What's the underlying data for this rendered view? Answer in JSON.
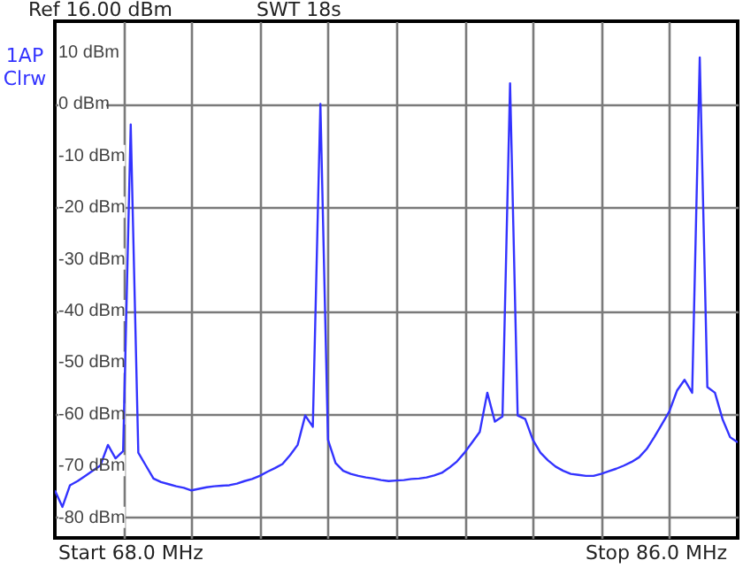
{
  "chart_data": {
    "type": "line",
    "annotations": [
      "Ref 16.00 dBm",
      "SWT 18s",
      "1AP",
      "Clrw",
      "Start 68.0 MHz",
      "Stop 86.0 MHz"
    ],
    "categories": [
      null,
      null,
      null,
      null,
      null,
      null,
      null,
      null,
      null,
      null,
      null,
      null,
      null,
      null,
      null,
      null,
      null,
      null,
      null,
      null,
      null,
      null,
      null,
      null,
      null,
      null,
      null,
      null,
      null,
      null,
      null,
      null,
      null,
      null,
      null,
      null,
      null,
      null,
      null,
      null,
      null,
      null,
      null,
      null,
      null,
      null,
      null,
      null,
      null,
      null,
      null,
      null,
      null,
      null,
      null,
      null,
      null,
      null,
      null,
      null,
      null,
      null,
      null,
      null,
      null,
      null,
      null,
      null,
      null,
      null,
      null,
      null,
      null,
      null,
      null,
      null,
      null,
      null,
      null,
      null,
      null,
      null,
      null,
      null,
      null,
      null,
      null,
      null,
      null,
      null,
      null
    ],
    "series": [
      {
        "color": "#3333ff",
        "values": [
          -74.8,
          -78,
          -73.8,
          -73,
          -72,
          -71,
          -70,
          -66,
          -68.6,
          -67.2,
          -4,
          -67.5,
          -70,
          -72.5,
          -73.2,
          -73.6,
          -74,
          -74.3,
          -74.8,
          -74.5,
          -74.2,
          -74,
          -73.9,
          -73.8,
          -73.5,
          -73,
          -72.6,
          -72,
          -71.2,
          -70.5,
          -69.7,
          -68,
          -66,
          -60.3,
          -62.5,
          0,
          -65,
          -69.5,
          -71,
          -71.6,
          -72,
          -72.3,
          -72.5,
          -72.8,
          -73,
          -72.9,
          -72.8,
          -72.6,
          -72.5,
          -72.3,
          -71.9,
          -71.4,
          -70.4,
          -69.2,
          -67.5,
          -65.5,
          -63.5,
          -55.9,
          -61.5,
          -60.5,
          4,
          -60.3,
          -61,
          -65,
          -67.5,
          -69,
          -70.2,
          -71,
          -71.6,
          -71.8,
          -72,
          -72,
          -71.6,
          -71.1,
          -70.6,
          -70,
          -69.3,
          -68.4,
          -66.8,
          -64.5,
          -62,
          -59.5,
          -55.5,
          -53.4,
          -55.9,
          9,
          -54.8,
          -55.9,
          -61,
          -64.5,
          -65.5
        ]
      }
    ],
    "ylim": [
      -84,
      16
    ],
    "yticks": [
      {
        "value": 10,
        "label": "10 dBm"
      },
      {
        "value": 0,
        "label": "0 dBm"
      },
      {
        "value": -10,
        "label": "-10 dBm"
      },
      {
        "value": -20,
        "label": "-20 dBm"
      },
      {
        "value": -30,
        "label": "-30 dBm"
      },
      {
        "value": -40,
        "label": "-40 dBm"
      },
      {
        "value": -50,
        "label": "-50 dBm"
      },
      {
        "value": -60,
        "label": "-60 dBm"
      },
      {
        "value": -70,
        "label": "-70 dBm"
      },
      {
        "value": -80,
        "label": "-80 dBm"
      }
    ],
    "grid": true,
    "tick_labels": "y",
    "marker": "none"
  }
}
